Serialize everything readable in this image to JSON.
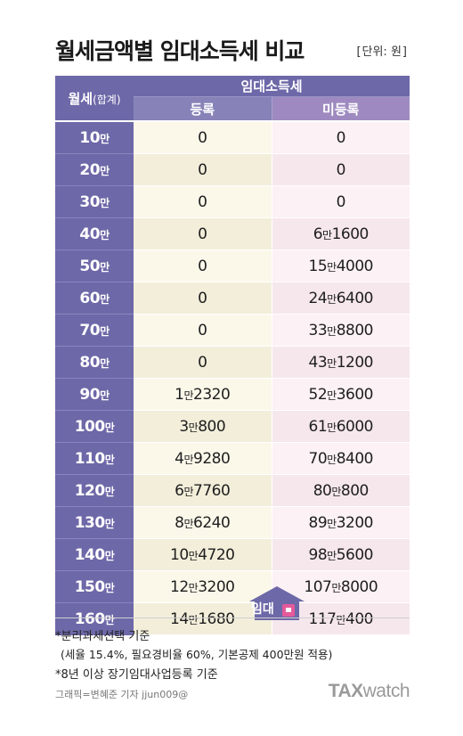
{
  "header": {
    "title": "월세금액별 임대소득세 비교",
    "unit_open": "[",
    "unit_label": "단위: 원",
    "unit_close": "]"
  },
  "chart_data": {
    "type": "table",
    "title": "월세금액별 임대소득세 비교",
    "unit": "단위: 원",
    "columns": {
      "row_header_main": "월세",
      "row_header_sub": "(합계)",
      "group_header": "임대소득세",
      "col_registered": "등록",
      "col_unregistered": "미등록"
    },
    "rows": [
      {
        "monthly_rent": {
          "num": "10",
          "unit": "만"
        },
        "registered": [
          {
            "t": "0",
            "s": false
          }
        ],
        "unregistered": [
          {
            "t": "0",
            "s": false
          }
        ]
      },
      {
        "monthly_rent": {
          "num": "20",
          "unit": "만"
        },
        "registered": [
          {
            "t": "0",
            "s": false
          }
        ],
        "unregistered": [
          {
            "t": "0",
            "s": false
          }
        ]
      },
      {
        "monthly_rent": {
          "num": "30",
          "unit": "만"
        },
        "registered": [
          {
            "t": "0",
            "s": false
          }
        ],
        "unregistered": [
          {
            "t": "0",
            "s": false
          }
        ]
      },
      {
        "monthly_rent": {
          "num": "40",
          "unit": "만"
        },
        "registered": [
          {
            "t": "0",
            "s": false
          }
        ],
        "unregistered": [
          {
            "t": "6",
            "s": false
          },
          {
            "t": "만",
            "s": true
          },
          {
            "t": "1600",
            "s": false
          }
        ]
      },
      {
        "monthly_rent": {
          "num": "50",
          "unit": "만"
        },
        "registered": [
          {
            "t": "0",
            "s": false
          }
        ],
        "unregistered": [
          {
            "t": "15",
            "s": false
          },
          {
            "t": "만",
            "s": true
          },
          {
            "t": "4000",
            "s": false
          }
        ]
      },
      {
        "monthly_rent": {
          "num": "60",
          "unit": "만"
        },
        "registered": [
          {
            "t": "0",
            "s": false
          }
        ],
        "unregistered": [
          {
            "t": "24",
            "s": false
          },
          {
            "t": "만",
            "s": true
          },
          {
            "t": "6400",
            "s": false
          }
        ]
      },
      {
        "monthly_rent": {
          "num": "70",
          "unit": "만"
        },
        "registered": [
          {
            "t": "0",
            "s": false
          }
        ],
        "unregistered": [
          {
            "t": "33",
            "s": false
          },
          {
            "t": "만",
            "s": true
          },
          {
            "t": "8800",
            "s": false
          }
        ]
      },
      {
        "monthly_rent": {
          "num": "80",
          "unit": "만"
        },
        "registered": [
          {
            "t": "0",
            "s": false
          }
        ],
        "unregistered": [
          {
            "t": "43",
            "s": false
          },
          {
            "t": "만",
            "s": true
          },
          {
            "t": "1200",
            "s": false
          }
        ]
      },
      {
        "monthly_rent": {
          "num": "90",
          "unit": "만"
        },
        "registered": [
          {
            "t": "1",
            "s": false
          },
          {
            "t": "만",
            "s": true
          },
          {
            "t": "2320",
            "s": false
          }
        ],
        "unregistered": [
          {
            "t": "52",
            "s": false
          },
          {
            "t": "만",
            "s": true
          },
          {
            "t": "3600",
            "s": false
          }
        ]
      },
      {
        "monthly_rent": {
          "num": "100",
          "unit": "만"
        },
        "registered": [
          {
            "t": "3",
            "s": false
          },
          {
            "t": "만",
            "s": true
          },
          {
            "t": "800",
            "s": false
          }
        ],
        "unregistered": [
          {
            "t": "61",
            "s": false
          },
          {
            "t": "만",
            "s": true
          },
          {
            "t": "6000",
            "s": false
          }
        ]
      },
      {
        "monthly_rent": {
          "num": "110",
          "unit": "만"
        },
        "registered": [
          {
            "t": "4",
            "s": false
          },
          {
            "t": "만",
            "s": true
          },
          {
            "t": "9280",
            "s": false
          }
        ],
        "unregistered": [
          {
            "t": "70",
            "s": false
          },
          {
            "t": "만",
            "s": true
          },
          {
            "t": "8400",
            "s": false
          }
        ]
      },
      {
        "monthly_rent": {
          "num": "120",
          "unit": "만"
        },
        "registered": [
          {
            "t": "6",
            "s": false
          },
          {
            "t": "만",
            "s": true
          },
          {
            "t": "7760",
            "s": false
          }
        ],
        "unregistered": [
          {
            "t": "80",
            "s": false
          },
          {
            "t": "만",
            "s": true
          },
          {
            "t": "800",
            "s": false
          }
        ]
      },
      {
        "monthly_rent": {
          "num": "130",
          "unit": "만"
        },
        "registered": [
          {
            "t": "8",
            "s": false
          },
          {
            "t": "만",
            "s": true
          },
          {
            "t": "6240",
            "s": false
          }
        ],
        "unregistered": [
          {
            "t": "89",
            "s": false
          },
          {
            "t": "만",
            "s": true
          },
          {
            "t": "3200",
            "s": false
          }
        ]
      },
      {
        "monthly_rent": {
          "num": "140",
          "unit": "만"
        },
        "registered": [
          {
            "t": "10",
            "s": false
          },
          {
            "t": "만",
            "s": true
          },
          {
            "t": "4720",
            "s": false
          }
        ],
        "unregistered": [
          {
            "t": "98",
            "s": false
          },
          {
            "t": "만",
            "s": true
          },
          {
            "t": "5600",
            "s": false
          }
        ]
      },
      {
        "monthly_rent": {
          "num": "150",
          "unit": "만"
        },
        "registered": [
          {
            "t": "12",
            "s": false
          },
          {
            "t": "만",
            "s": true
          },
          {
            "t": "3200",
            "s": false
          }
        ],
        "unregistered": [
          {
            "t": "107",
            "s": false
          },
          {
            "t": "만",
            "s": true
          },
          {
            "t": "8000",
            "s": false
          }
        ]
      },
      {
        "monthly_rent": {
          "num": "160",
          "unit": "만"
        },
        "registered": [
          {
            "t": "14",
            "s": false
          },
          {
            "t": "만",
            "s": true
          },
          {
            "t": "1680",
            "s": false
          }
        ],
        "unregistered": [
          {
            "t": "117",
            "s": false
          },
          {
            "t": "만",
            "s": true
          },
          {
            "t": "400",
            "s": false
          }
        ]
      }
    ]
  },
  "decoration": {
    "house_label": "임대",
    "house_color": "#6d68a8",
    "door_color": "#e45a9a"
  },
  "notes": [
    "*분리과세선택 기준",
    "(세율 15.4%, 필요경비율 60%, 기본공제 400만원 적용)",
    "*8년 이상 장기임대사업등록 기준"
  ],
  "footer": {
    "credit": "그래픽=변혜준 기자 jjun009@",
    "logo_tax": "TAX",
    "logo_watch": "watch"
  },
  "colors": {
    "header_purple": "#6d68a8",
    "registered_header": "#8783b8",
    "unregistered_header": "#9e8ac0",
    "registered_bg": "#fbf8ea",
    "unregistered_bg": "#fcf1f5"
  }
}
